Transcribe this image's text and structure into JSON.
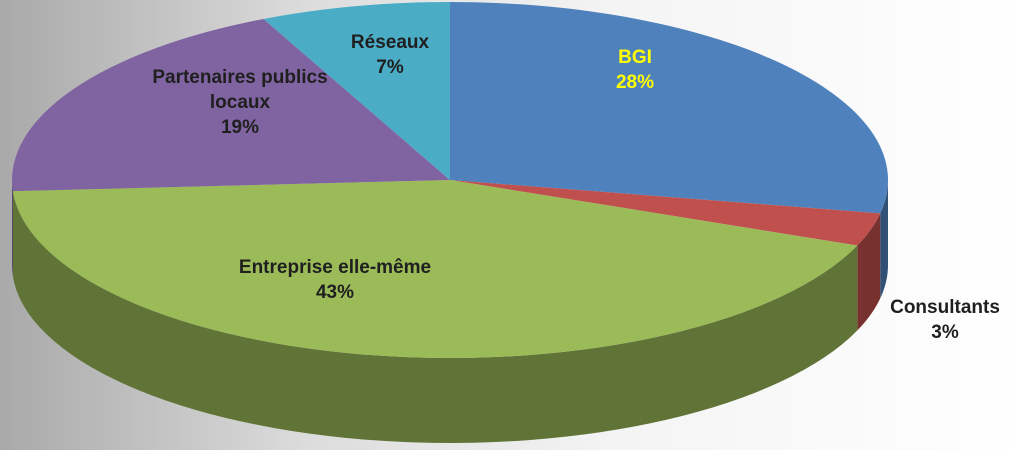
{
  "chart_data": {
    "type": "pie",
    "categories": [
      "BGI",
      "Consultants",
      "Entreprise elle-même",
      "Partenaires publics locaux",
      "Réseaux"
    ],
    "values": [
      28,
      3,
      43,
      19,
      7
    ],
    "value_labels": [
      "28%",
      "3%",
      "43%",
      "19%",
      "7%"
    ],
    "colors": [
      "#4f81bd",
      "#c0504d",
      "#9bbb59",
      "#8064a2",
      "#4bacc6"
    ],
    "label_colors": [
      "#ffff00",
      "#1f1f1f",
      "#1f1f1f",
      "#1f1f1f",
      "#1f1f1f"
    ],
    "three_d": true
  }
}
